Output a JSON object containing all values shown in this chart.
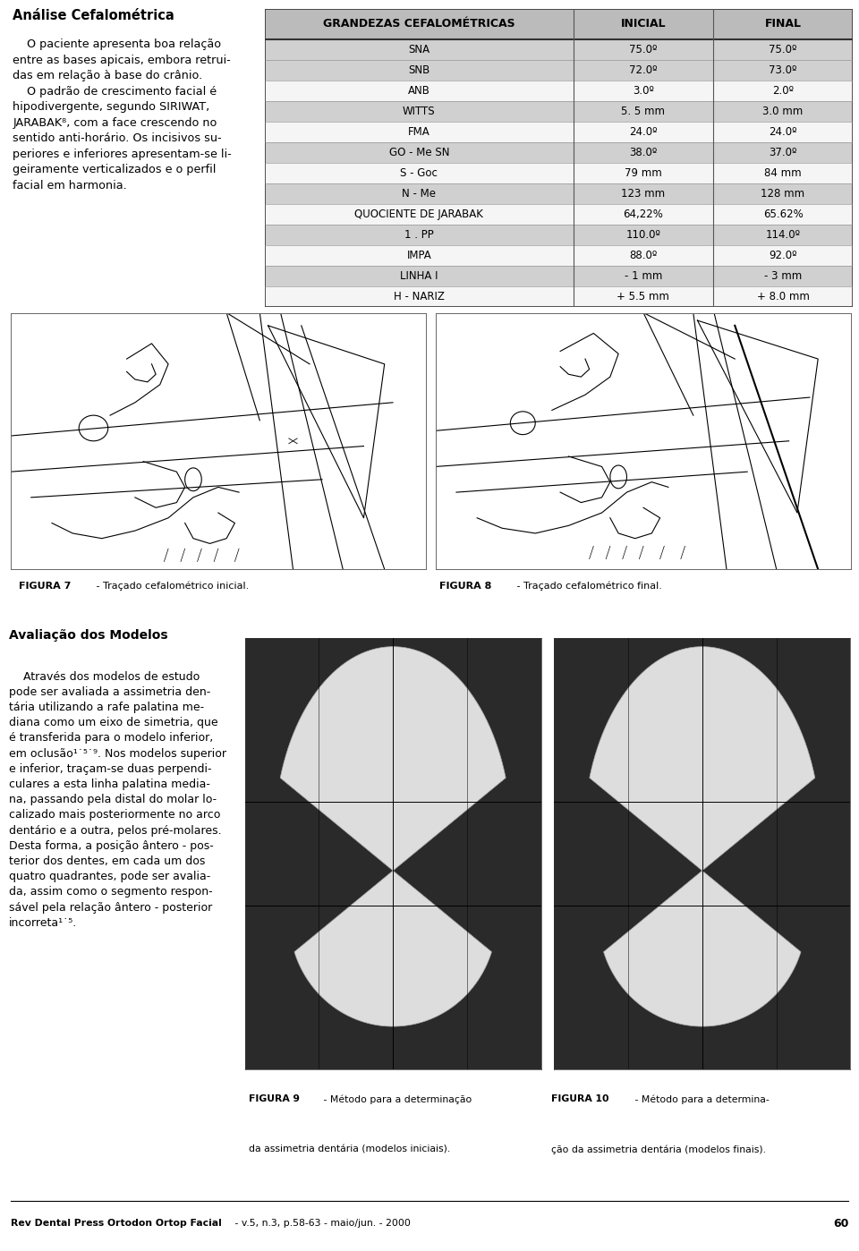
{
  "title_left": "Análise Cefalométrica",
  "paragraph_left": "    O paciente apresenta boa relação\nentre as bases apicais, embora retrui-\ndas em relação à base do crânio.\n    O padrão de crescimento facial é\nhipodivergente, segundo SIRIWAT,\nJARABAK⁸, com a face crescendo no\nsentido anti-horário. Os incisivos su-\nperiores e inferiores apresentam-se li-\ngeiramente verticalizados e o perfil\nfacial em harmonia.",
  "table_header": [
    "GRANDEZAS CEFALOMÉTRICAS",
    "INICIAL",
    "FINAL"
  ],
  "table_rows": [
    [
      "SNA",
      "75.0º",
      "75.0º"
    ],
    [
      "SNB",
      "72.0º",
      "73.0º"
    ],
    [
      "ANB",
      "3.0º",
      "2.0º"
    ],
    [
      "WITTS",
      "5. 5 mm",
      "3.0 mm"
    ],
    [
      "FMA",
      "24.0º",
      "24.0º"
    ],
    [
      "GO - Me SN",
      "38.0º",
      "37.0º"
    ],
    [
      "S - Goc",
      "79 mm",
      "84 mm"
    ],
    [
      "N - Me",
      "123 mm",
      "128 mm"
    ],
    [
      "QUOCIENTE DE JARABAK",
      "64,22%",
      "65.62%"
    ],
    [
      "1 . PP",
      "110.0º",
      "114.0º"
    ],
    [
      "IMPA",
      "88.0º",
      "92.0º"
    ],
    [
      "LINHA I",
      "- 1 mm",
      "- 3 mm"
    ],
    [
      "H - NARIZ",
      "+ 5.5 mm",
      "+ 8.0 mm"
    ]
  ],
  "shaded_rows": [
    0,
    1,
    3,
    5,
    7,
    9,
    11
  ],
  "fig7_bold": "FIGURA 7",
  "fig7_rest": " - Traçado cefalométrico inicial.",
  "fig8_bold": "FIGURA 8",
  "fig8_rest": " - Traçado cefalométrico final.",
  "avaliacao_title": "Avaliação dos Modelos",
  "avaliacao_text": "    Através dos modelos de estudo\npode ser avaliada a assimetria den-\ntária utilizando a rafe palatina me-\ndiana como um eixo de simetria, que\né transferida para o modelo inferior,\nem oclusão¹˙⁵˙⁹. Nos modelos superior\ne inferior, traçam-se duas perpendi-\nculares a esta linha palatina media-\nna, passando pela distal do molar lo-\ncalizado mais posteriormente no arco\ndentário e a outra, pelos pré-molares.\nDesta forma, a posição ântero - pos-\nterior dos dentes, em cada um dos\nquatro quadrantes, pode ser avalia-\nda, assim como o segmento respon-\nsável pela relação ântero - posterior\nincorreta¹˙⁵.",
  "fig9_bold": "FIGURA 9",
  "fig9_rest": " - Método para a determinação\nda assimetria dentária (modelos iniciais).",
  "fig10_bold": "FIGURA 10",
  "fig10_rest": " - Método para a determina-\nção da assimetria dentária (modelos finais).",
  "footer_bold": "Rev Dental Press Ortodon Ortop Facial",
  "footer_rest": " - v.5, n.3, p.58-63 - maio/jun. - 2000",
  "footer_page": "60",
  "bg_color": "#ffffff",
  "shaded_color": "#d0d0d0",
  "white_row_color": "#f5f5f5",
  "table_border_color": "#444444",
  "photo_bg": "#2a2a2a"
}
